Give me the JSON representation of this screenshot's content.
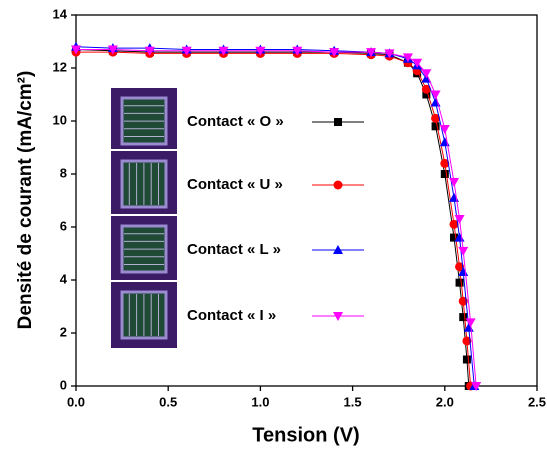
{
  "chart_data": {
    "type": "line",
    "xlabel": "Tension (V)",
    "ylabel": "Densité de courant (mA/cm²)",
    "xlim": [
      0,
      2.5
    ],
    "ylim": [
      0,
      14
    ],
    "xticks": [
      {
        "value": 0,
        "label": "0.0"
      },
      {
        "value": 0.5,
        "label": "0.5"
      },
      {
        "value": 1,
        "label": "1.0"
      },
      {
        "value": 1.5,
        "label": "1.5"
      },
      {
        "value": 2,
        "label": "2.0"
      },
      {
        "value": 2.5,
        "label": "2.5"
      }
    ],
    "yticks": [
      0,
      2,
      4,
      6,
      8,
      10,
      12,
      14
    ],
    "series": [
      {
        "name": "Contact « O »",
        "color": "#000000",
        "marker": "square",
        "x": [
          0,
          0.2,
          0.4,
          0.6,
          0.8,
          1.0,
          1.2,
          1.4,
          1.6,
          1.7,
          1.8,
          1.85,
          1.9,
          1.95,
          2.0,
          2.05,
          2.08,
          2.1,
          2.12,
          2.13
        ],
        "values": [
          12.7,
          12.65,
          12.6,
          12.6,
          12.6,
          12.6,
          12.6,
          12.6,
          12.55,
          12.5,
          12.2,
          11.8,
          11.0,
          9.8,
          8.0,
          5.6,
          3.9,
          2.6,
          1.0,
          0
        ]
      },
      {
        "name": "Contact « U »",
        "color": "#ff0000",
        "marker": "circle",
        "x": [
          0,
          0.2,
          0.4,
          0.6,
          0.8,
          1.0,
          1.2,
          1.4,
          1.6,
          1.7,
          1.8,
          1.85,
          1.9,
          1.95,
          2.0,
          2.05,
          2.08,
          2.1,
          2.12,
          2.14
        ],
        "values": [
          12.6,
          12.6,
          12.55,
          12.55,
          12.55,
          12.55,
          12.55,
          12.55,
          12.5,
          12.45,
          12.2,
          11.9,
          11.2,
          10.1,
          8.4,
          6.1,
          4.5,
          3.2,
          1.7,
          0
        ]
      },
      {
        "name": "Contact « L »",
        "color": "#0000ff",
        "marker": "triangle-up",
        "x": [
          0,
          0.2,
          0.4,
          0.6,
          0.8,
          1.0,
          1.2,
          1.4,
          1.6,
          1.7,
          1.8,
          1.85,
          1.9,
          1.95,
          2.0,
          2.05,
          2.08,
          2.1,
          2.13,
          2.16
        ],
        "values": [
          12.8,
          12.75,
          12.75,
          12.7,
          12.7,
          12.7,
          12.7,
          12.65,
          12.6,
          12.55,
          12.35,
          12.1,
          11.6,
          10.7,
          9.2,
          7.1,
          5.6,
          4.3,
          2.2,
          0
        ]
      },
      {
        "name": "Contact « I »",
        "color": "#ff00ff",
        "marker": "triangle-down",
        "x": [
          0,
          0.2,
          0.4,
          0.6,
          0.8,
          1.0,
          1.2,
          1.4,
          1.6,
          1.7,
          1.8,
          1.85,
          1.9,
          1.95,
          2.0,
          2.05,
          2.08,
          2.1,
          2.14,
          2.17
        ],
        "values": [
          12.7,
          12.7,
          12.65,
          12.65,
          12.65,
          12.65,
          12.65,
          12.6,
          12.6,
          12.55,
          12.4,
          12.2,
          11.8,
          11.0,
          9.7,
          7.7,
          6.3,
          5.1,
          2.4,
          0
        ]
      }
    ]
  }
}
